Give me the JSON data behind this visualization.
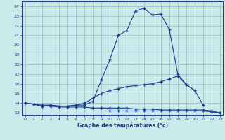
{
  "xlabel": "Graphe des températures (°c)",
  "hours": [
    0,
    1,
    2,
    3,
    4,
    5,
    6,
    7,
    8,
    9,
    10,
    11,
    12,
    13,
    14,
    15,
    16,
    17,
    18,
    19,
    20,
    21,
    22,
    23
  ],
  "temp_actual": [
    14.0,
    13.9,
    13.7,
    13.8,
    13.7,
    13.7,
    13.8,
    13.8,
    14.2,
    16.4,
    18.5,
    21.0,
    21.5,
    23.5,
    23.8,
    23.1,
    23.2,
    21.6,
    17.0,
    15.9,
    15.3,
    null,
    null,
    null
  ],
  "temp_max": [
    14.0,
    13.9,
    13.8,
    13.8,
    13.7,
    13.7,
    13.8,
    14.0,
    14.5,
    15.0,
    15.3,
    15.5,
    15.7,
    15.8,
    15.9,
    16.0,
    16.2,
    16.5,
    16.8,
    15.9,
    15.3,
    13.8,
    null,
    null
  ],
  "temp_min": [
    14.0,
    13.9,
    13.7,
    13.7,
    13.6,
    13.6,
    13.6,
    13.6,
    13.5,
    13.5,
    13.5,
    13.5,
    13.5,
    13.4,
    13.4,
    13.4,
    13.3,
    13.3,
    13.3,
    13.3,
    13.3,
    13.3,
    13.2,
    13.0
  ],
  "temp_flat": [
    null,
    null,
    null,
    null,
    null,
    null,
    null,
    null,
    null,
    null,
    13.2,
    13.2,
    13.2,
    13.2,
    13.2,
    13.2,
    13.2,
    13.2,
    13.2,
    13.2,
    13.2,
    13.2,
    13.1,
    13.0
  ],
  "ylim": [
    12.8,
    24.5
  ],
  "xlim": [
    -0.3,
    23.3
  ],
  "yticks": [
    13,
    14,
    15,
    16,
    17,
    18,
    19,
    20,
    21,
    22,
    23,
    24
  ],
  "xticks": [
    0,
    1,
    2,
    3,
    4,
    5,
    6,
    7,
    8,
    9,
    10,
    11,
    12,
    13,
    14,
    15,
    16,
    17,
    18,
    19,
    20,
    21,
    22,
    23
  ],
  "line_color": "#1a3c8f",
  "bg_color": "#c8eae8",
  "grid_color": "#9ab8c8"
}
